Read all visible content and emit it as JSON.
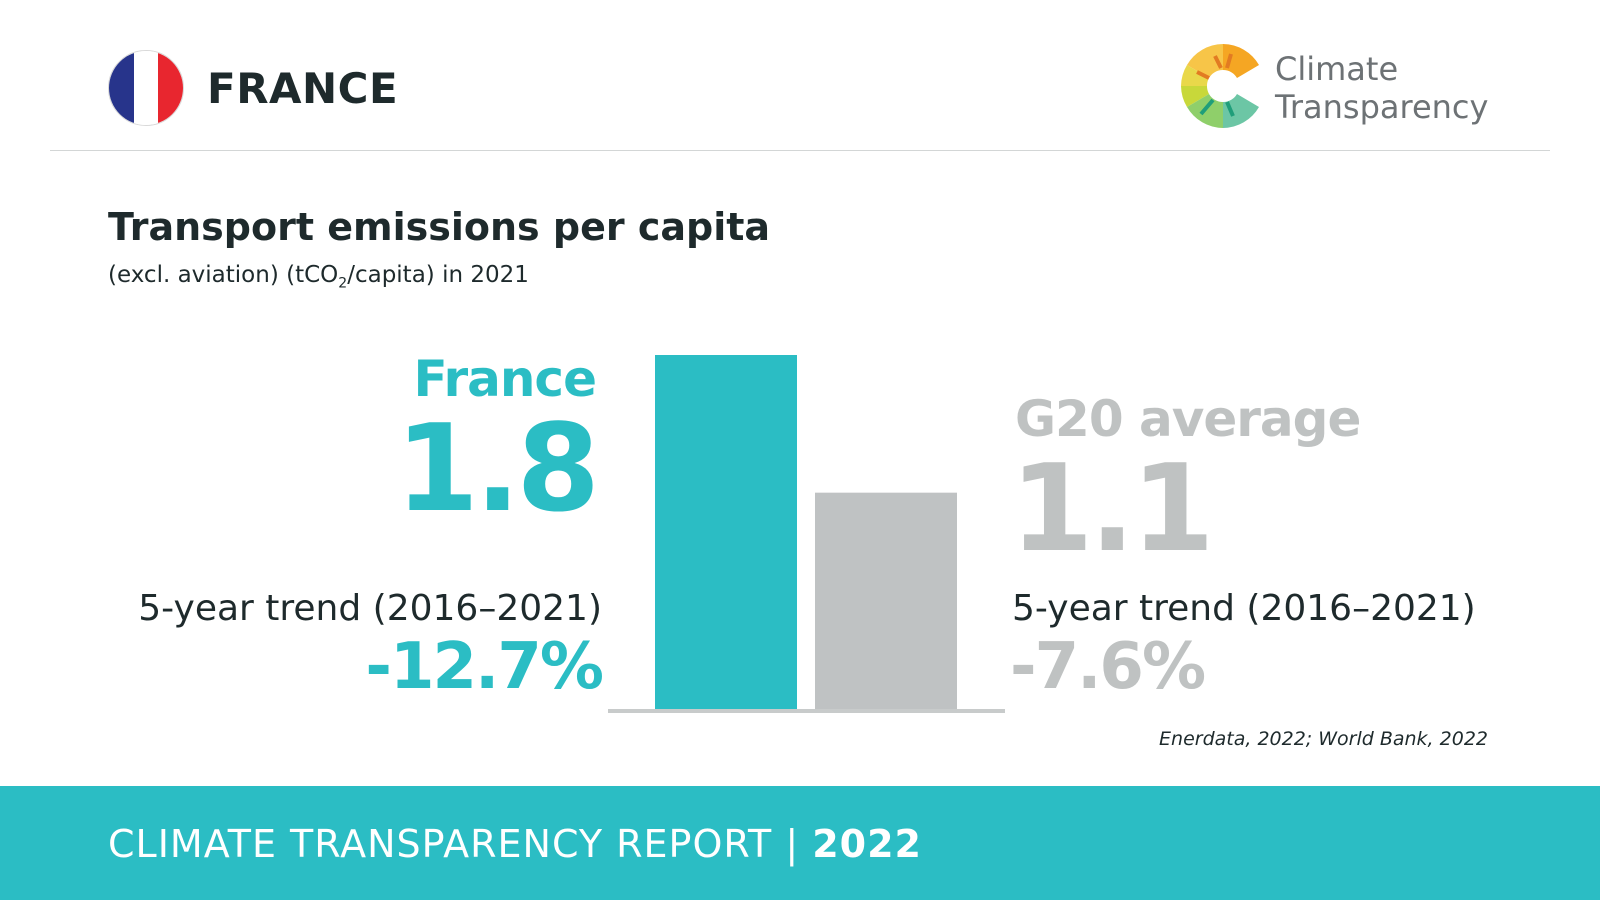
{
  "header": {
    "country": "FRANCE",
    "flag_colors": [
      "#27348b",
      "#ffffff",
      "#e8262f"
    ],
    "logo": {
      "icon": "climate-transparency-logo-icon",
      "line1": "Climate",
      "line2": "Transparency"
    }
  },
  "title": "Transport emissions per capita",
  "subtitle": {
    "before": "(excl. aviation) (tCO",
    "sub": "2",
    "after": "/capita) in 2021"
  },
  "chart_data": {
    "type": "bar",
    "categories": [
      "France",
      "G20 average"
    ],
    "values": [
      1.8,
      1.1
    ],
    "colors": [
      "#2bbdc4",
      "#bfc2c3"
    ],
    "value_labels": [
      "1.8",
      "1.1"
    ],
    "ylim": [
      0,
      1.8
    ],
    "trend_label": "5-year trend (2016–2021)",
    "trends": [
      "-12.7%",
      "-7.6%"
    ],
    "grid": false
  },
  "source": "Enerdata, 2022; World Bank, 2022",
  "footer": {
    "text": "CLIMATE TRANSPARENCY REPORT",
    "separator": "|",
    "year": "2022"
  },
  "colors": {
    "accent": "#2bbdc4",
    "gray": "#bfc2c3",
    "text": "#1e2a2c"
  }
}
